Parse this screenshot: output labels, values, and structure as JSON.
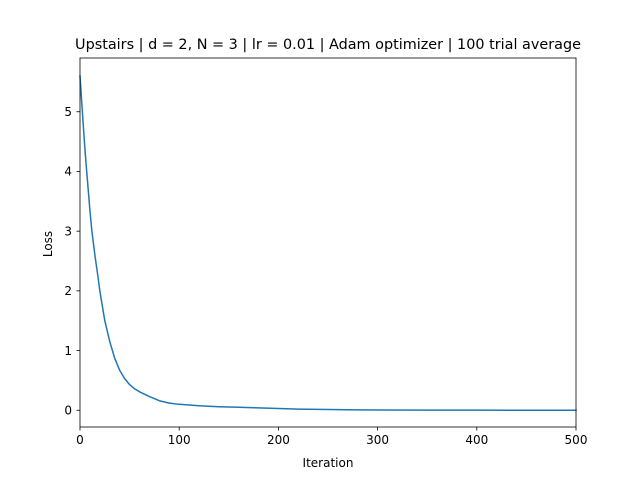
{
  "chart_data": {
    "type": "line",
    "title": "Upstairs | d = 2, N = 3 | lr = 0.01 | Adam optimizer | 100 trial average",
    "xlabel": "Iteration",
    "ylabel": "Loss",
    "xlim": [
      0,
      500
    ],
    "ylim": [
      -0.28,
      5.9
    ],
    "xticks": [
      0,
      100,
      200,
      300,
      400,
      500
    ],
    "yticks": [
      0,
      1,
      2,
      3,
      4,
      5
    ],
    "grid": false,
    "legend": "none",
    "series": [
      {
        "color": "#1f77b4",
        "x": [
          0,
          2,
          4,
          6,
          8,
          10,
          12,
          15,
          18,
          20,
          25,
          30,
          35,
          40,
          45,
          50,
          55,
          60,
          70,
          80,
          90,
          100,
          120,
          140,
          160,
          180,
          200,
          220,
          240,
          260,
          280,
          300,
          350,
          400,
          450,
          500
        ],
        "y": [
          5.6,
          5.1,
          4.6,
          4.15,
          3.75,
          3.35,
          3.0,
          2.6,
          2.25,
          2.0,
          1.5,
          1.15,
          0.87,
          0.67,
          0.53,
          0.43,
          0.36,
          0.31,
          0.23,
          0.16,
          0.12,
          0.1,
          0.075,
          0.06,
          0.05,
          0.04,
          0.03,
          0.02,
          0.015,
          0.01,
          0.007,
          0.005,
          0.003,
          0.002,
          0.001,
          0.001
        ]
      }
    ]
  }
}
